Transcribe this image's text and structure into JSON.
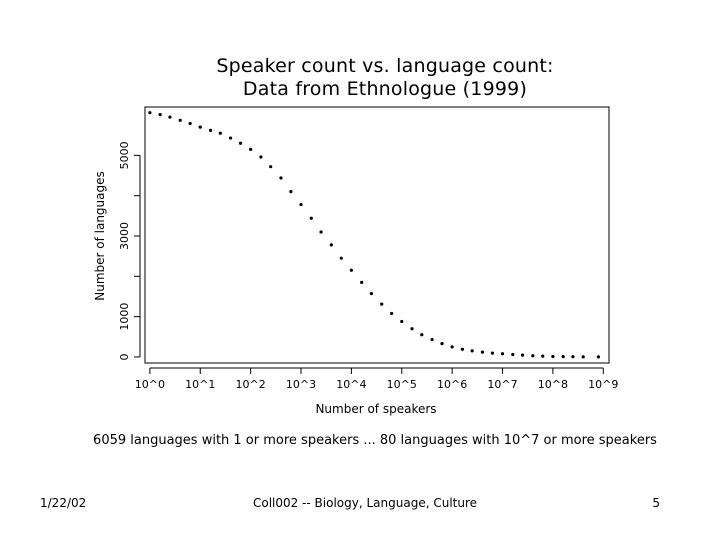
{
  "slide": {
    "title_line1": "Speaker count vs. language count:",
    "title_line2": "Data from Ethnologue (1999)",
    "caption": "6059 languages with 1 or more speakers ... 80 languages with 10^7 or more speakers"
  },
  "footer": {
    "date": "1/22/02",
    "course": "Coll002 -- Biology, Language, Culture",
    "page": "5"
  },
  "chart_data": {
    "type": "scatter",
    "title": "Speaker count vs. language count:\nData from Ethnologue (1999)",
    "xlabel": "Number of speakers",
    "ylabel": "Number of languages",
    "x_scale": "log10",
    "x_tick_labels": [
      "10^0",
      "10^1",
      "10^2",
      "10^3",
      "10^4",
      "10^5",
      "10^6",
      "10^7",
      "10^8",
      "10^9"
    ],
    "x_ticks": [
      1,
      10,
      100,
      1000,
      10000,
      100000,
      1000000,
      10000000,
      100000000,
      1000000000
    ],
    "y_tick_labels": [
      "0",
      "1000",
      "3000",
      "5000"
    ],
    "y_ticks_labeled": [
      0,
      1000,
      3000,
      5000
    ],
    "y_ticks_minor": [
      2000,
      4000
    ],
    "xlim": [
      0.8,
      1300000000
    ],
    "ylim": [
      -150,
      6200
    ],
    "grid": false,
    "series": [
      {
        "points": [
          [
            1,
            6059
          ],
          [
            1.6,
            6010
          ],
          [
            2.5,
            5950
          ],
          [
            4,
            5870
          ],
          [
            6.3,
            5790
          ],
          [
            10,
            5700
          ],
          [
            16,
            5620
          ],
          [
            25,
            5550
          ],
          [
            40,
            5430
          ],
          [
            63,
            5300
          ],
          [
            100,
            5150
          ],
          [
            160,
            4960
          ],
          [
            250,
            4720
          ],
          [
            400,
            4440
          ],
          [
            630,
            4100
          ],
          [
            1000,
            3780
          ],
          [
            1600,
            3440
          ],
          [
            2500,
            3100
          ],
          [
            4000,
            2780
          ],
          [
            6300,
            2450
          ],
          [
            10000,
            2150
          ],
          [
            16000,
            1850
          ],
          [
            25000,
            1570
          ],
          [
            40000,
            1310
          ],
          [
            63000,
            1080
          ],
          [
            100000,
            880
          ],
          [
            160000,
            700
          ],
          [
            250000,
            550
          ],
          [
            400000,
            430
          ],
          [
            630000,
            330
          ],
          [
            1000000,
            250
          ],
          [
            1600000,
            190
          ],
          [
            2500000,
            150
          ],
          [
            4000000,
            120
          ],
          [
            6300000,
            95
          ],
          [
            10000000,
            80
          ],
          [
            16000000,
            60
          ],
          [
            25000000,
            45
          ],
          [
            40000000,
            30
          ],
          [
            63000000,
            20
          ],
          [
            100000000,
            12
          ],
          [
            160000000,
            8
          ],
          [
            250000000,
            5
          ],
          [
            400000000,
            3
          ],
          [
            800000000,
            1
          ]
        ]
      }
    ]
  }
}
